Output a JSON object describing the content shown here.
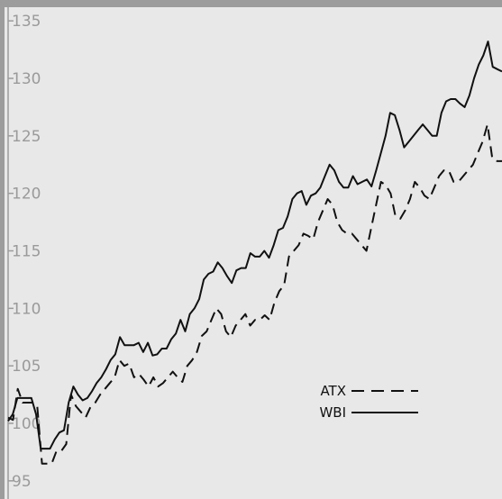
{
  "chart_data": {
    "type": "line",
    "title": "",
    "xlabel": "",
    "ylabel": "",
    "ylim": [
      94,
      136
    ],
    "y_ticks": [
      95,
      100,
      105,
      110,
      115,
      120,
      125,
      130,
      135
    ],
    "y_tick_labels": [
      "95",
      "100",
      "105",
      "110",
      "115",
      "120",
      "125",
      "130",
      "135"
    ],
    "grid": false,
    "legend_position": "lower-right",
    "colors": {
      "background": "#e8e8e8",
      "frame": "#9c9c9c",
      "series": "#111111",
      "tick_label": "#9a9a9a"
    },
    "series": [
      {
        "name": "ATX",
        "line_style": "dashed",
        "values": [
          100.5,
          100.3,
          103.0,
          101.8,
          101.8,
          101.8,
          101.6,
          96.5,
          96.5,
          96.5,
          97.6,
          97.6,
          98.2,
          102.5,
          101.5,
          101.0,
          100.5,
          101.4,
          101.8,
          102.5,
          103.0,
          103.5,
          104.0,
          105.5,
          105.0,
          105.2,
          104.0,
          104.3,
          103.8,
          103.2,
          104.0,
          103.2,
          103.5,
          104.0,
          104.5,
          104.0,
          103.6,
          105.0,
          105.5,
          106.2,
          107.6,
          108.0,
          109.0,
          110.0,
          109.5,
          108.0,
          107.5,
          108.5,
          109.0,
          109.5,
          108.5,
          109.0,
          109.0,
          109.4,
          109.0,
          110.5,
          111.5,
          112.0,
          114.5,
          115.0,
          115.5,
          116.5,
          116.3,
          116.0,
          117.5,
          118.5,
          119.5,
          119.0,
          117.5,
          116.8,
          116.5,
          116.5,
          116.0,
          115.5,
          115.0,
          117.0,
          119.0,
          121.0,
          120.7,
          120.0,
          118.0,
          117.8,
          118.5,
          119.5,
          121.0,
          120.5,
          119.8,
          119.5,
          120.5,
          121.5,
          122.0,
          122.0,
          121.0,
          121.0,
          121.5,
          122.0,
          122.5,
          123.5,
          124.5,
          126.0,
          123.0,
          122.8,
          122.8
        ]
      },
      {
        "name": "WBI",
        "line_style": "solid",
        "values": [
          100.2,
          100.8,
          102.2,
          102.2,
          102.2,
          102.2,
          100.8,
          97.8,
          97.8,
          97.8,
          98.6,
          99.2,
          99.4,
          101.8,
          103.2,
          102.5,
          102.0,
          102.2,
          102.8,
          103.5,
          104.0,
          104.7,
          105.5,
          106.0,
          107.5,
          106.8,
          106.8,
          106.8,
          107.0,
          106.2,
          107.0,
          105.9,
          106.0,
          106.5,
          106.5,
          107.3,
          107.8,
          109.0,
          108.0,
          109.5,
          110.0,
          110.8,
          112.5,
          113.0,
          113.2,
          114.0,
          113.5,
          112.8,
          112.2,
          113.3,
          113.5,
          113.5,
          114.8,
          114.5,
          114.5,
          115.0,
          114.4,
          115.5,
          116.8,
          117.0,
          118.0,
          119.5,
          120.0,
          120.2,
          119.0,
          119.8,
          120.0,
          120.5,
          121.5,
          122.5,
          122.0,
          121.0,
          120.5,
          120.5,
          121.5,
          120.8,
          121.0,
          121.2,
          120.6,
          122.0,
          123.5,
          125.0,
          127.0,
          126.8,
          125.5,
          124.0,
          124.5,
          125.0,
          125.5,
          126.0,
          125.5,
          125.0,
          125.0,
          127.0,
          128.0,
          128.2,
          128.2,
          127.8,
          127.5,
          128.5,
          130.0,
          131.2,
          132.0,
          133.2,
          131.0,
          130.8,
          130.6
        ]
      }
    ]
  }
}
